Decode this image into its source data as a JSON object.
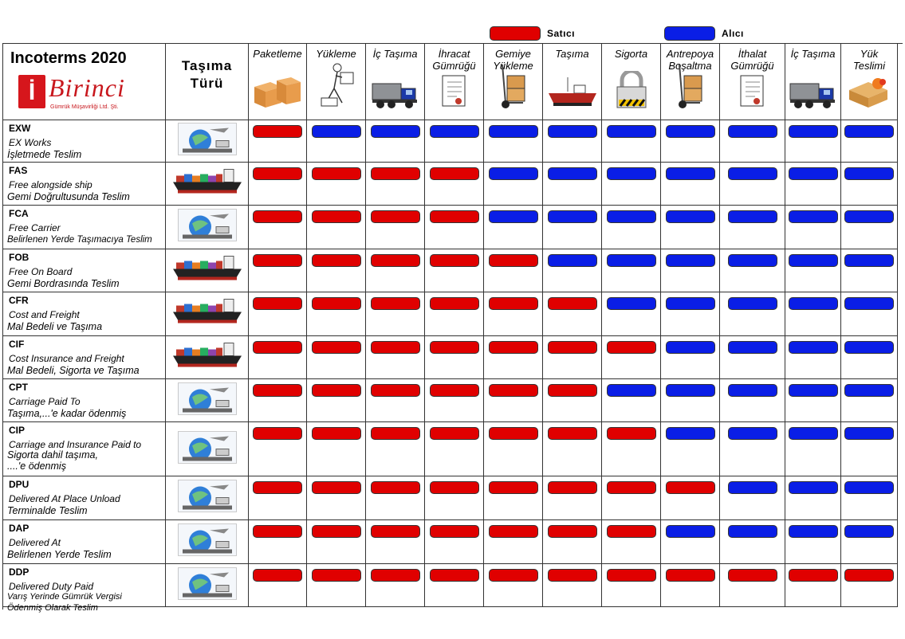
{
  "legend": {
    "seller_label": "Satıcı",
    "buyer_label": "Alıcı",
    "seller_color": "#e00000",
    "buyer_color": "#0a1ee6"
  },
  "brand": {
    "title": "Incoterms 2020",
    "logo_text": "Birinci",
    "logo_subtitle": "Gümrük Müşavirliği Ltd. Şti."
  },
  "transport_header": "Taşıma\nTürü",
  "columns": [
    {
      "label": "Paketleme",
      "icon": "boxes-icon"
    },
    {
      "label": "Yükleme",
      "icon": "loading-worker-icon"
    },
    {
      "label": "İç Taşıma",
      "icon": "truck-icon"
    },
    {
      "label": "İhracat\nGümrüğü",
      "icon": "document-icon"
    },
    {
      "label": "Gemiye\nYükleme",
      "icon": "hand-truck-icon"
    },
    {
      "label": "Taşıma",
      "icon": "ship-icon"
    },
    {
      "label": "Sigorta",
      "icon": "padlock-icon"
    },
    {
      "label": "Antrepoya\nBoşaltma",
      "icon": "hand-truck-icon"
    },
    {
      "label": "İthalat\nGümrüğü",
      "icon": "document-icon"
    },
    {
      "label": "İç Taşıma",
      "icon": "truck-icon"
    },
    {
      "label": "Yük\nTeslimi",
      "icon": "delivery-box-icon"
    }
  ],
  "rows": [
    {
      "code": "EXW",
      "en": "EX Works",
      "tr": "İşletmede Teslim",
      "transport": "multimodal",
      "cells": [
        "S",
        "B",
        "B",
        "B",
        "B",
        "B",
        "B",
        "B",
        "B",
        "B",
        "B"
      ]
    },
    {
      "code": "FAS",
      "en": "Free alongside ship",
      "tr": "Gemi Doğrultusunda Teslim",
      "transport": "sea",
      "cells": [
        "S",
        "S",
        "S",
        "S",
        "B",
        "B",
        "B",
        "B",
        "B",
        "B",
        "B"
      ]
    },
    {
      "code": "FCA",
      "en": "Free Carrier",
      "tr": "Belirlenen Yerde Taşımacıya Teslim",
      "transport": "multimodal",
      "cells": [
        "S",
        "S",
        "S",
        "S",
        "B",
        "B",
        "B",
        "B",
        "B",
        "B",
        "B"
      ]
    },
    {
      "code": "FOB",
      "en": "Free On Board",
      "tr": "Gemi Bordrasında Teslim",
      "transport": "sea",
      "cells": [
        "S",
        "S",
        "S",
        "S",
        "S",
        "B",
        "B",
        "B",
        "B",
        "B",
        "B"
      ]
    },
    {
      "code": "CFR",
      "en": "Cost and Freight",
      "tr": "Mal Bedeli ve Taşıma",
      "transport": "sea",
      "cells": [
        "S",
        "S",
        "S",
        "S",
        "S",
        "S",
        "B",
        "B",
        "B",
        "B",
        "B"
      ]
    },
    {
      "code": "CIF",
      "en": "Cost Insurance and Freight",
      "tr": "Mal Bedeli, Sigorta ve Taşıma",
      "transport": "sea",
      "cells": [
        "S",
        "S",
        "S",
        "S",
        "S",
        "S",
        "S",
        "B",
        "B",
        "B",
        "B"
      ]
    },
    {
      "code": "CPT",
      "en": "Carriage Paid To",
      "tr": "Taşıma,...'e kadar ödenmiş",
      "transport": "multimodal",
      "cells": [
        "S",
        "S",
        "S",
        "S",
        "S",
        "S",
        "B",
        "B",
        "B",
        "B",
        "B"
      ]
    },
    {
      "code": "CIP",
      "en": "Carriage and Insurance  Paid to",
      "tr": "Sigorta dahil taşıma,\n....'e ödenmiş",
      "transport": "multimodal",
      "cells": [
        "S",
        "S",
        "S",
        "S",
        "S",
        "S",
        "S",
        "B",
        "B",
        "B",
        "B"
      ]
    },
    {
      "code": "DPU",
      "en": "Delivered At Place Unload",
      "tr": "Terminalde Teslim",
      "transport": "multimodal",
      "cells": [
        "S",
        "S",
        "S",
        "S",
        "S",
        "S",
        "S",
        "S",
        "B",
        "B",
        "B"
      ]
    },
    {
      "code": "DAP",
      "en": "Delivered At",
      "tr": "Belirlenen Yerde Teslim",
      "transport": "multimodal",
      "cells": [
        "S",
        "S",
        "S",
        "S",
        "S",
        "S",
        "S",
        "B",
        "B",
        "B",
        "B"
      ]
    },
    {
      "code": "DDP",
      "en": "Delivered Duty Paid",
      "tr": "Varış Yerinde Gümrük Vergisi\nÖdenmiş Olarak Teslim",
      "transport": "multimodal",
      "cells": [
        "S",
        "S",
        "S",
        "S",
        "S",
        "S",
        "S",
        "S",
        "S",
        "S",
        "S"
      ]
    }
  ]
}
